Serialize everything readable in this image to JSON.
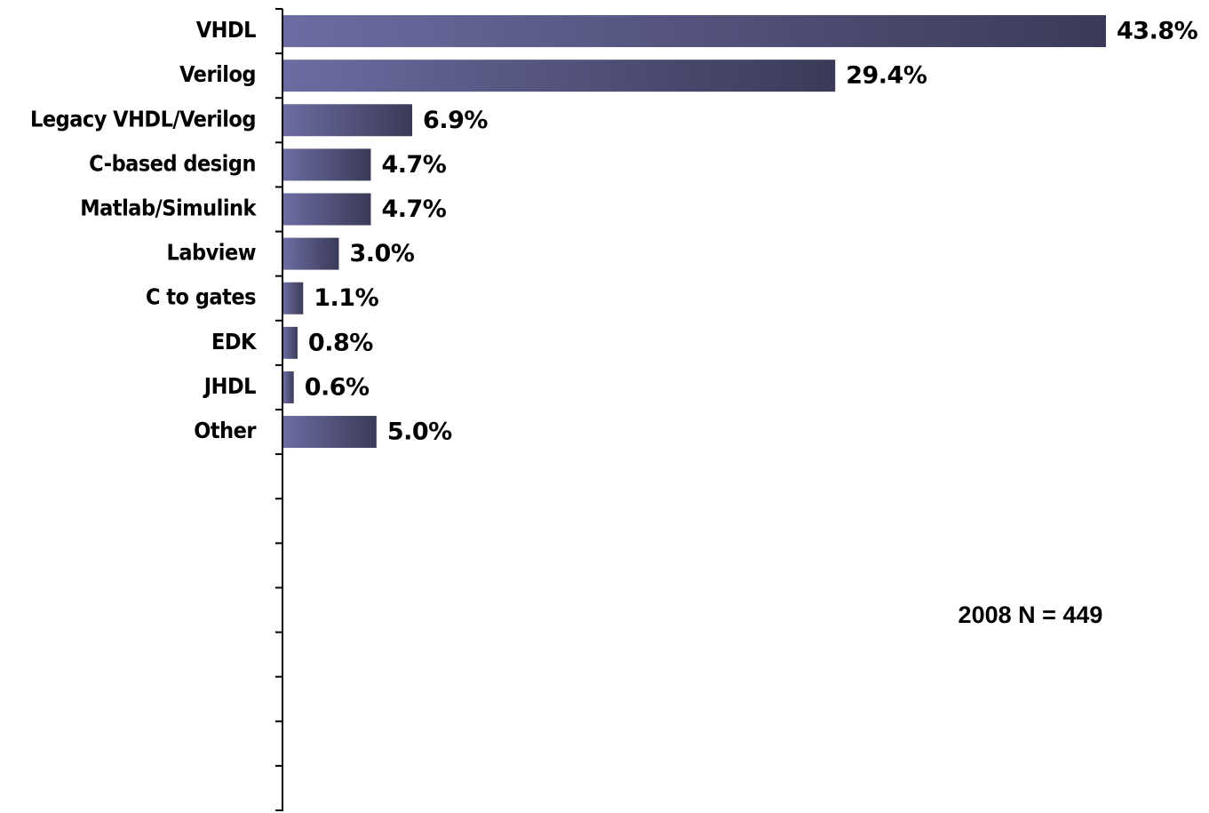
{
  "chart_data": {
    "type": "hbar",
    "categories": [
      "VHDL",
      "Verilog",
      "Legacy VHDL/Verilog",
      "C-based design",
      "Matlab/Simulink",
      "Labview",
      "C to gates",
      "EDK",
      "JHDL",
      "Other",
      null,
      null,
      null,
      null,
      null,
      null,
      null,
      null
    ],
    "values": [
      43.8,
      29.4,
      6.9,
      4.7,
      4.7,
      3.0,
      1.1,
      0.8,
      0.6,
      5.0,
      null,
      null,
      null,
      null,
      null,
      null,
      null,
      null
    ],
    "value_labels": [
      "43.8%",
      "29.4%",
      "6.9%",
      "4.7%",
      "4.7%",
      "3.0%",
      "1.1%",
      "0.8%",
      "0.6%",
      "5.0%",
      null,
      null,
      null,
      null,
      null,
      null,
      null,
      null
    ],
    "gradient": [
      "#6c6ca2",
      "#3a3a58"
    ],
    "annotation": "2008 N = 449"
  }
}
